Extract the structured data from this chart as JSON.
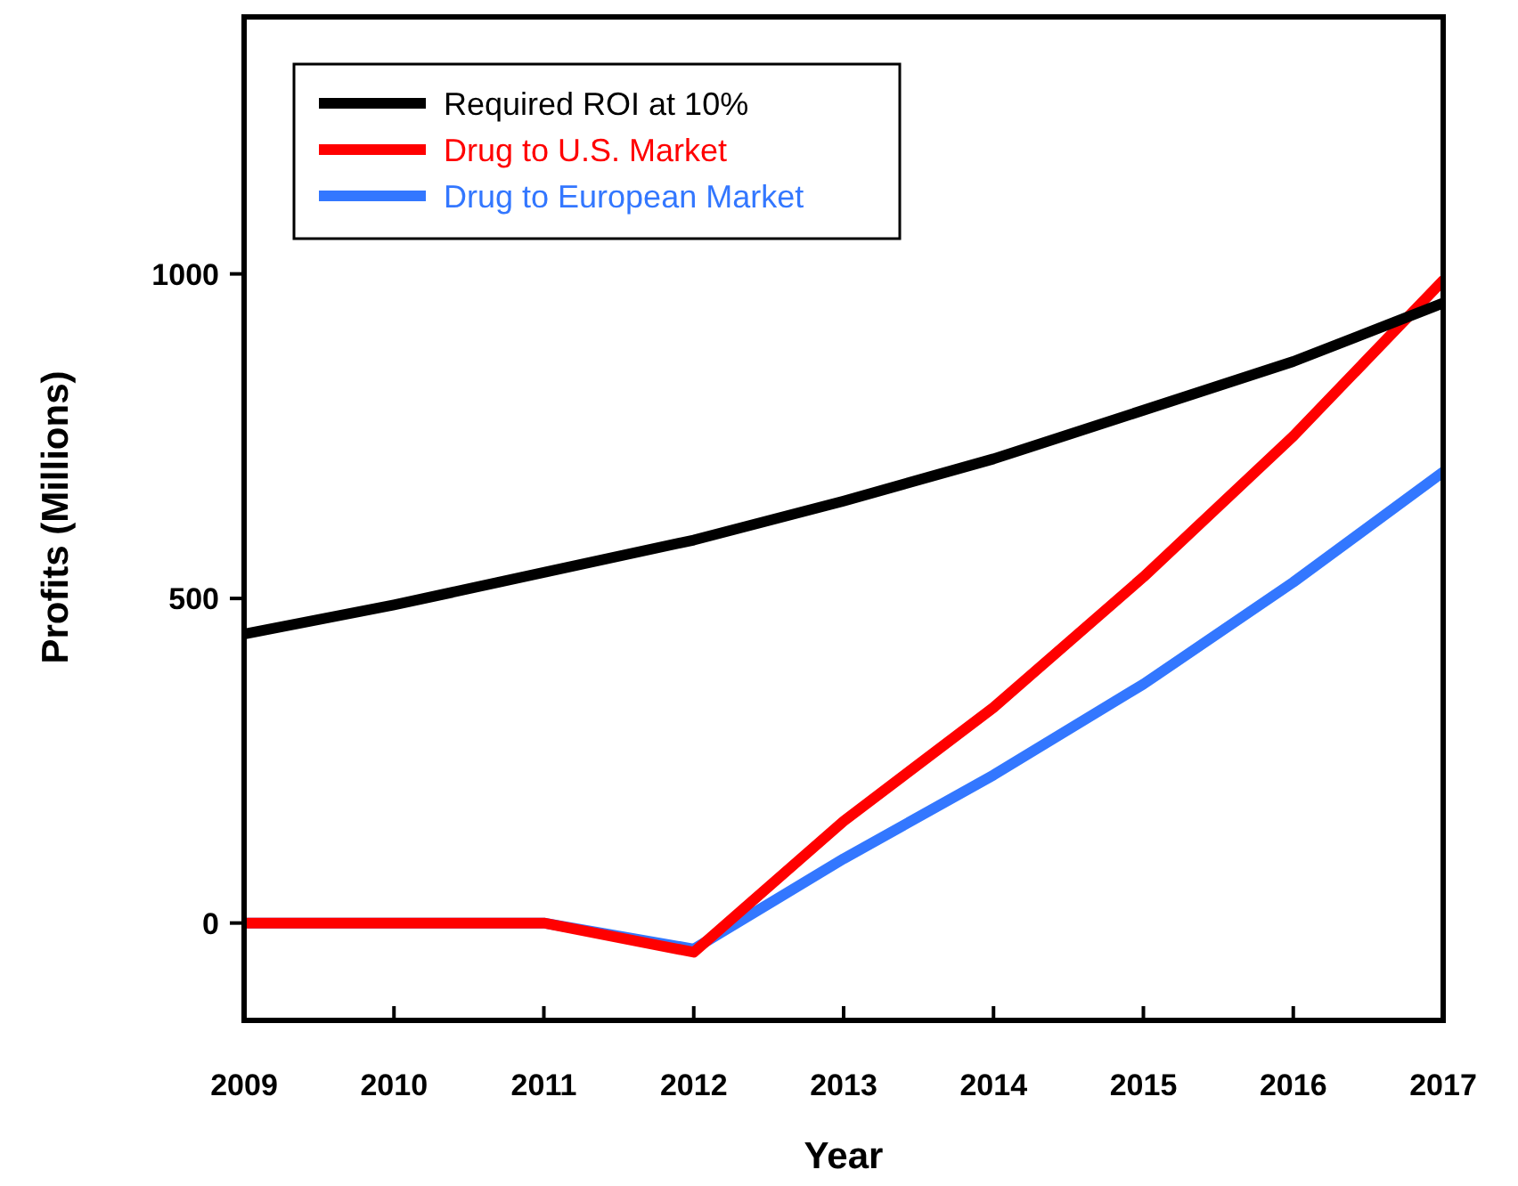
{
  "chart_data": {
    "type": "line",
    "xlabel": "Year",
    "ylabel": "Profits (Millions)",
    "x": [
      2009,
      2010,
      2011,
      2012,
      2013,
      2014,
      2015,
      2016,
      2017
    ],
    "xlim": [
      2009,
      2017
    ],
    "xticks": [
      2009,
      2010,
      2011,
      2012,
      2013,
      2014,
      2015,
      2016,
      2017
    ],
    "ylim": [
      -150,
      1400
    ],
    "yticks": [
      0,
      500,
      1000
    ],
    "grid": false,
    "legend": "top left",
    "marker": "none",
    "line_style": "solid",
    "series": [
      {
        "name": "Required ROI at 10%",
        "color": "#000000",
        "values": [
          445,
          490,
          540,
          590,
          650,
          715,
          790,
          865,
          955
        ]
      },
      {
        "name": "Drug to U.S. Market",
        "color": "#ff0000",
        "values": [
          0,
          0,
          0,
          -45,
          157,
          332,
          533,
          750,
          990
        ]
      },
      {
        "name": "Drug to European Market",
        "color": "#3377ff",
        "values": [
          0,
          0,
          0,
          -40,
          99,
          228,
          368,
          525,
          695
        ]
      }
    ]
  }
}
